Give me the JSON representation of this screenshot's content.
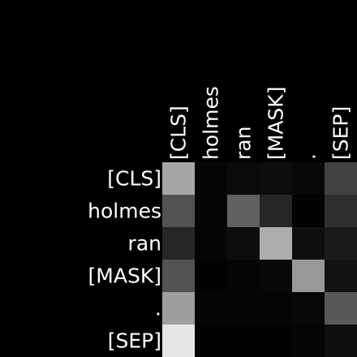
{
  "chart_data": {
    "type": "heatmap",
    "title": "",
    "xlabel": "",
    "ylabel": "",
    "x_tokens": [
      "[CLS]",
      "holmes",
      "ran",
      "[MASK]",
      ".",
      "[SEP]"
    ],
    "y_tokens": [
      "[CLS]",
      "holmes",
      "ran",
      "[MASK]",
      ".",
      "[SEP]"
    ],
    "value_range": [
      0,
      1
    ],
    "colormap": "grayscale (black = low, white = high)",
    "matrix": [
      [
        0.65,
        0.02,
        0.04,
        0.05,
        0.03,
        0.26
      ],
      [
        0.32,
        0.02,
        0.38,
        0.15,
        0.01,
        0.18
      ],
      [
        0.15,
        0.02,
        0.05,
        0.68,
        0.06,
        0.1
      ],
      [
        0.32,
        0.01,
        0.02,
        0.03,
        0.6,
        0.07
      ],
      [
        0.62,
        0.02,
        0.02,
        0.02,
        0.03,
        0.35
      ],
      [
        0.9,
        0.01,
        0.01,
        0.01,
        0.02,
        0.06
      ]
    ],
    "grid": false,
    "colors": {
      "background": "#000000",
      "text": "#ffffff",
      "low": "#000000",
      "high": "#ffffff"
    }
  }
}
